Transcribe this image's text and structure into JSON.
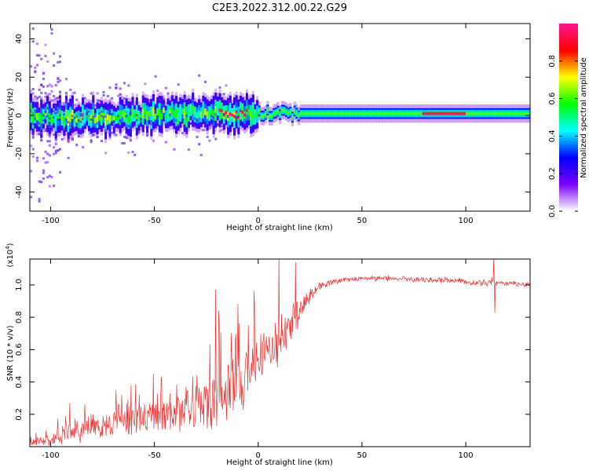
{
  "title": "C2E3.2022.312.00.22.G29",
  "chart_data": [
    {
      "type": "heatmap",
      "xlabel": "Height of straight line (km)",
      "ylabel": "Frequency (Hz)",
      "xlim": [
        -110,
        131
      ],
      "ylim": [
        -50,
        48
      ],
      "xticks": [
        -100,
        -50,
        0,
        50,
        100
      ],
      "yticks": [
        -40,
        -20,
        0,
        20,
        40
      ],
      "grid": false,
      "ridge": {
        "x": [
          -110,
          -100,
          -90,
          -80,
          -70,
          -60,
          -50,
          -40,
          -30,
          -20,
          -10,
          0,
          10,
          20,
          40,
          60,
          80,
          100,
          110,
          131
        ],
        "y": [
          0,
          -1,
          -1,
          -1,
          -1,
          0,
          1,
          1,
          1,
          2,
          1,
          1,
          1,
          1,
          1,
          1,
          1,
          1,
          1,
          1
        ]
      },
      "colorbar": {
        "label": "Normalized spectral amplitude",
        "range": [
          0,
          1
        ],
        "ticks": [
          0.0,
          0.2,
          0.4,
          0.6,
          0.8
        ],
        "tick_labels": [
          "0.0",
          "0.2",
          "0.4",
          "0.6",
          "0.8"
        ],
        "colors": [
          "#ffffff",
          "#7b00ff",
          "#0000ff",
          "#00ffff",
          "#00ff00",
          "#ffff00",
          "#ff0000",
          "#ff1493"
        ]
      }
    },
    {
      "type": "line",
      "xlabel": "Height of straight line (km)",
      "ylabel": "SNR (10 * v/v)",
      "scale_label": "(x10",
      "scale_exp": "4",
      "scale_close": ")",
      "xlim": [
        -110,
        131
      ],
      "ylim": [
        0,
        1.16
      ],
      "xticks": [
        -100,
        -50,
        0,
        50,
        100
      ],
      "yticks": [
        0.2,
        0.4,
        0.6,
        0.8,
        1.0
      ],
      "ytick_labels": [
        "0.2",
        "0.4",
        "0.6",
        "0.8",
        "1.0"
      ],
      "grid": false,
      "color": "#ee3333",
      "envelope": {
        "x": [
          -110,
          -100,
          -90,
          -80,
          -70,
          -60,
          -50,
          -40,
          -30,
          -25,
          -20,
          -15,
          -10,
          -5,
          0,
          5,
          10,
          15,
          20,
          25,
          30,
          40,
          50,
          60,
          70,
          80,
          90,
          100,
          105,
          110,
          113,
          115,
          120,
          131
        ],
        "mean": [
          0.02,
          0.05,
          0.09,
          0.13,
          0.14,
          0.16,
          0.18,
          0.21,
          0.24,
          0.27,
          0.3,
          0.34,
          0.4,
          0.46,
          0.52,
          0.58,
          0.64,
          0.72,
          0.84,
          0.94,
          1.0,
          1.03,
          1.04,
          1.04,
          1.04,
          1.03,
          1.03,
          1.02,
          1.01,
          1.01,
          1.03,
          1.01,
          1.01,
          1.0
        ],
        "spread": [
          0.02,
          0.05,
          0.09,
          0.1,
          0.1,
          0.12,
          0.14,
          0.16,
          0.18,
          0.2,
          0.22,
          0.22,
          0.22,
          0.22,
          0.2,
          0.18,
          0.18,
          0.16,
          0.1,
          0.05,
          0.03,
          0.02,
          0.02,
          0.02,
          0.02,
          0.02,
          0.02,
          0.02,
          0.02,
          0.03,
          0.04,
          0.02,
          0.02,
          0.02
        ]
      },
      "spikes": [
        {
          "x": -20.5,
          "y": 0.97
        },
        {
          "x": -19,
          "y": 0.84
        },
        {
          "x": -2,
          "y": 0.96
        },
        {
          "x": 10,
          "y": 1.16
        },
        {
          "x": 18,
          "y": 1.14
        },
        {
          "x": 113.5,
          "y": 1.17
        },
        {
          "x": 114,
          "y": 0.83
        }
      ]
    }
  ]
}
